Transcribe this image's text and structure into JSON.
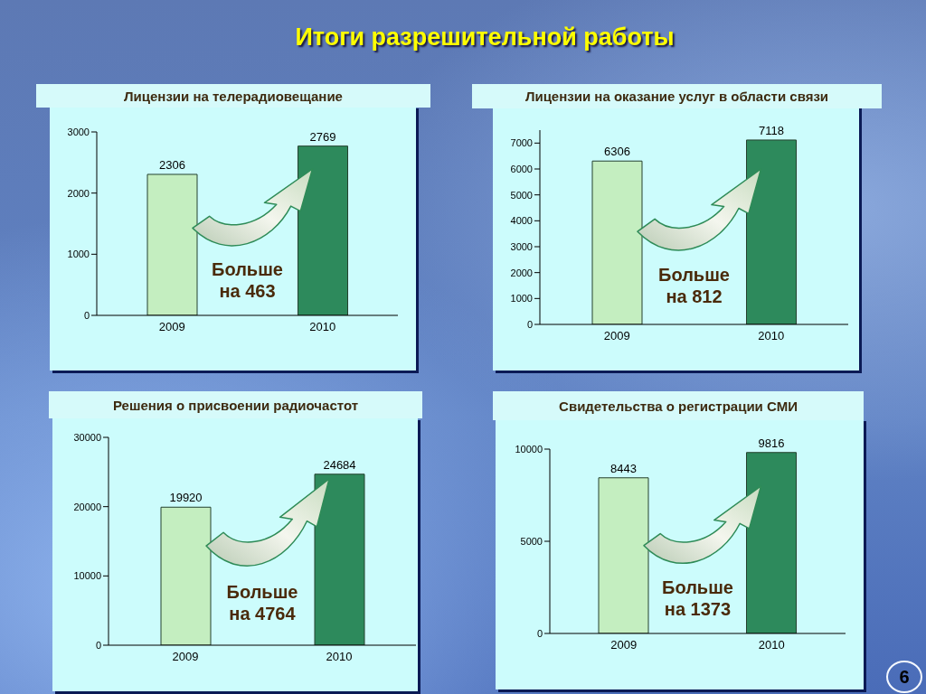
{
  "chart_data": [
    {
      "type": "other",
      "title": "Итоги разрешительной работы",
      "annotations": [
        "6"
      ]
    },
    {
      "type": "bar",
      "title": "Лицензии на телерадиовещание",
      "categories": [
        "2009",
        "2010"
      ],
      "values": [
        2306,
        2769
      ],
      "colors": [
        "#c4eec0",
        "#2d8a5c"
      ],
      "ylim": [
        0,
        3000
      ],
      "yticks": [
        0,
        1000,
        2000,
        3000
      ],
      "data_labels": true,
      "annotations": [
        "Больше на 463"
      ]
    },
    {
      "type": "bar",
      "title": "Лицензии на оказание услуг в области связи",
      "categories": [
        "2009",
        "2010"
      ],
      "values": [
        6306,
        7118
      ],
      "colors": [
        "#c4eec0",
        "#2d8a5c"
      ],
      "ylim": [
        0,
        7500
      ],
      "yticks": [
        0,
        1000,
        2000,
        3000,
        4000,
        5000,
        6000,
        7000
      ],
      "data_labels": true,
      "annotations": [
        "Больше на 812"
      ]
    },
    {
      "type": "bar",
      "title": "Решения о присвоении радиочастот",
      "categories": [
        "2009",
        "2010"
      ],
      "values": [
        19920,
        24684
      ],
      "colors": [
        "#c4eec0",
        "#2d8a5c"
      ],
      "ylim": [
        0,
        30000
      ],
      "yticks": [
        0,
        10000,
        20000,
        30000
      ],
      "data_labels": true,
      "annotations": [
        "Больше на 4764"
      ]
    },
    {
      "type": "bar",
      "title": "Свидетельства о регистрации СМИ",
      "categories": [
        "2009",
        "2010"
      ],
      "values": [
        8443,
        9816
      ],
      "colors": [
        "#c4eec0",
        "#2d8a5c"
      ],
      "ylim": [
        0,
        10000
      ],
      "yticks": [
        0,
        5000,
        10000
      ],
      "data_labels": true,
      "annotations": [
        "Больше на 1373"
      ]
    }
  ]
}
